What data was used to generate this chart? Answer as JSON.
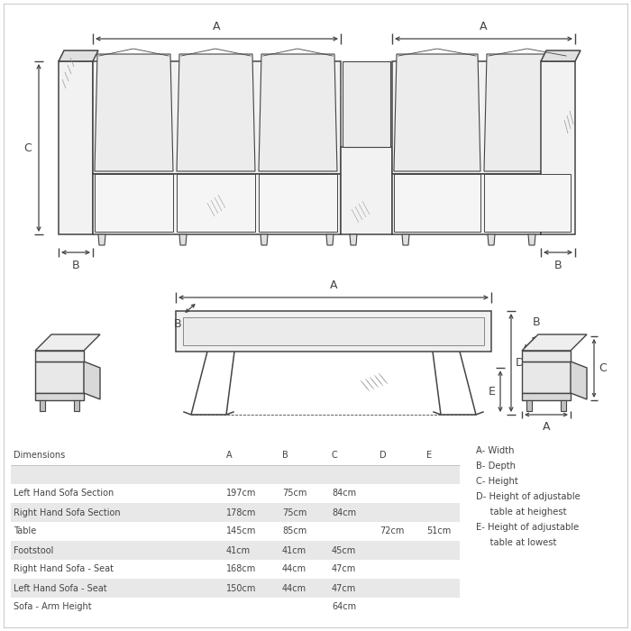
{
  "bg_color": "#ffffff",
  "line_color": "#444444",
  "fill_light": "#f2f2f2",
  "fill_mid": "#e0e0e0",
  "fill_dark": "#cccccc",
  "table_data": {
    "headers": [
      "Dimensions",
      "A",
      "B",
      "C",
      "D",
      "E"
    ],
    "rows": [
      [
        "Left Hand Sofa Section",
        "197cm",
        "75cm",
        "84cm",
        "",
        ""
      ],
      [
        "Right Hand Sofa Section",
        "178cm",
        "75cm",
        "84cm",
        "",
        ""
      ],
      [
        "Table",
        "145cm",
        "85cm",
        "",
        "72cm",
        "51cm"
      ],
      [
        "Footstool",
        "41cm",
        "41cm",
        "45cm",
        "",
        ""
      ],
      [
        "Right Hand Sofa - Seat",
        "168cm",
        "44cm",
        "47cm",
        "",
        ""
      ],
      [
        "Left Hand Sofa - Seat",
        "150cm",
        "44cm",
        "47cm",
        "",
        ""
      ],
      [
        "Sofa - Arm Height",
        "",
        "",
        "64cm",
        "",
        ""
      ]
    ]
  },
  "legend_lines": [
    "A- Width",
    "B- Depth",
    "C- Height",
    "D- Height of adjustable",
    "     table at heighest",
    "E- Height of adjustable",
    "     table at lowest"
  ],
  "font_size_table": 7.0,
  "font_size_label": 8.5,
  "table_row_bg_odd": "#e8e8e8",
  "table_row_bg_even": "#ffffff"
}
